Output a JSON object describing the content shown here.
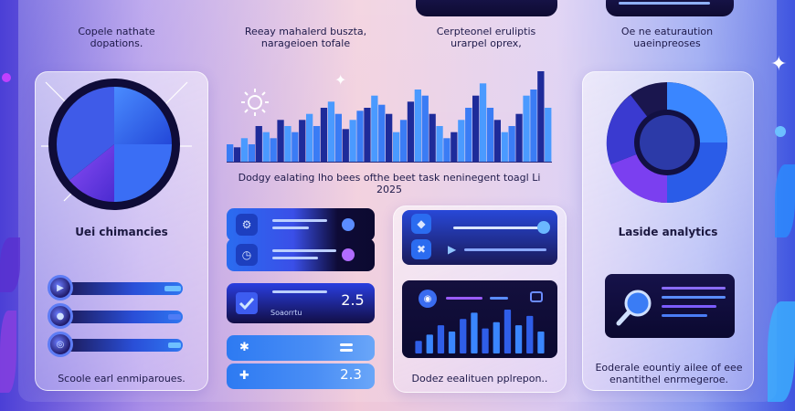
{
  "top_cards": [
    {
      "text": "Copele nathate dopations."
    },
    {
      "text": "Reeay mahalerd buszta, narageioen tofale"
    },
    {
      "text": "Cerpteonel eruliptis urarpel oprex,"
    },
    {
      "text": "Oe ne eaturaution uaeinpreoses"
    }
  ],
  "chart_caption": "Dodgy ealating lho bees ofthe beet task neninegent toagl Li 2025",
  "left_card": {
    "heading": "Uei chimancies",
    "footer": "Scoole earl enmiparoues."
  },
  "right_card": {
    "heading": "Laside analytics",
    "footer": "Eoderale eountiy ailee of eee enantithel enrmegeroe."
  },
  "tiles": [
    {
      "value": "2.5"
    },
    {
      "label": "Soaorrtu"
    },
    {
      "value": "2.3"
    }
  ],
  "panel_caption": "Dodez eealituen pplrepon..",
  "colors": {
    "accent": "#2f6ff0",
    "dark": "#0e0b32",
    "purple": "#7b3ff0"
  },
  "chart_data": {
    "type": "bar",
    "values": [
      6,
      5,
      8,
      6,
      12,
      10,
      8,
      14,
      12,
      10,
      14,
      16,
      12,
      18,
      20,
      16,
      11,
      14,
      17,
      18,
      22,
      19,
      16,
      10,
      14,
      20,
      24,
      22,
      16,
      12,
      8,
      10,
      14,
      18,
      22,
      26,
      18,
      14,
      10,
      12,
      16,
      22,
      24,
      30,
      18
    ],
    "title": "",
    "xlabel": "",
    "ylabel": ""
  },
  "mini_chart": {
    "type": "bar",
    "values": [
      8,
      12,
      18,
      14,
      22,
      26,
      16,
      20,
      28,
      18,
      24,
      14
    ]
  }
}
